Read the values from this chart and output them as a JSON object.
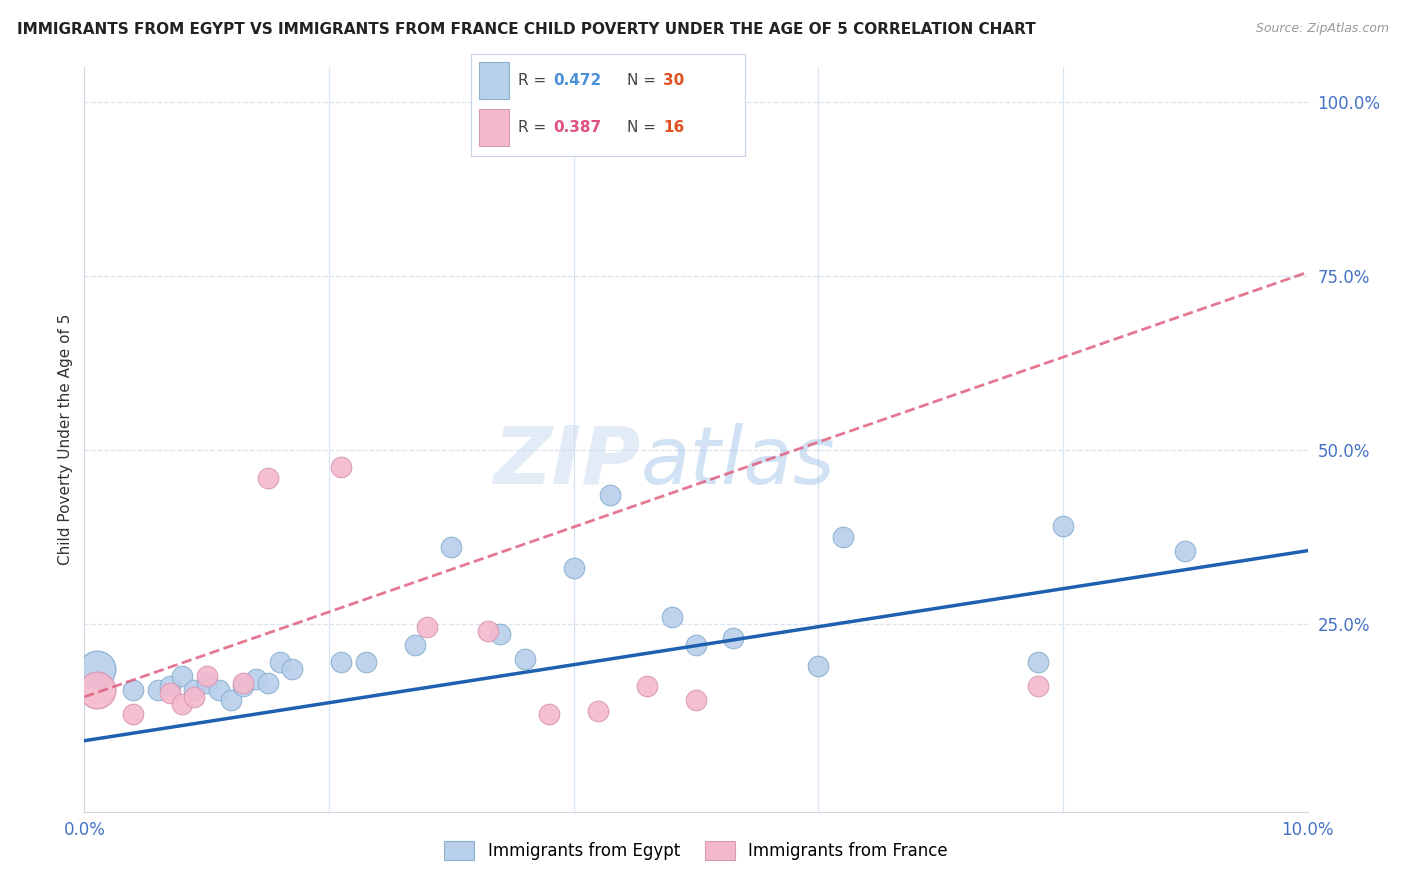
{
  "title": "IMMIGRANTS FROM EGYPT VS IMMIGRANTS FROM FRANCE CHILD POVERTY UNDER THE AGE OF 5 CORRELATION CHART",
  "source": "Source: ZipAtlas.com",
  "ylabel": "Child Poverty Under the Age of 5",
  "xlim": [
    0.0,
    0.1
  ],
  "ylim": [
    -0.02,
    1.05
  ],
  "R_egypt": 0.472,
  "N_egypt": 30,
  "R_france": 0.387,
  "N_france": 16,
  "color_egypt": "#b8d0ea",
  "color_france": "#f4b8cc",
  "color_egypt_line": "#2060b0",
  "color_france_line": "#e06080",
  "egypt_x": [
    0.001,
    0.004,
    0.006,
    0.007,
    0.008,
    0.009,
    0.01,
    0.011,
    0.012,
    0.013,
    0.014,
    0.015,
    0.016,
    0.017,
    0.021,
    0.023,
    0.027,
    0.03,
    0.034,
    0.036,
    0.04,
    0.043,
    0.048,
    0.05,
    0.053,
    0.06,
    0.062,
    0.078,
    0.08,
    0.09
  ],
  "egypt_y": [
    0.185,
    0.155,
    0.155,
    0.16,
    0.175,
    0.155,
    0.165,
    0.155,
    0.14,
    0.16,
    0.17,
    0.165,
    0.195,
    0.185,
    0.195,
    0.195,
    0.22,
    0.36,
    0.235,
    0.2,
    0.33,
    0.435,
    0.26,
    0.22,
    0.23,
    0.19,
    0.375,
    0.195,
    0.39,
    0.355
  ],
  "egypt_size_large": 1,
  "egypt_large_idx": 0,
  "france_x": [
    0.001,
    0.004,
    0.007,
    0.008,
    0.009,
    0.01,
    0.013,
    0.015,
    0.021,
    0.028,
    0.033,
    0.038,
    0.042,
    0.046,
    0.05,
    0.078
  ],
  "france_y": [
    0.155,
    0.12,
    0.15,
    0.135,
    0.145,
    0.175,
    0.165,
    0.46,
    0.475,
    0.245,
    0.24,
    0.12,
    0.125,
    0.16,
    0.14,
    0.16
  ],
  "france_large_idx": 0,
  "egypt_trend_y0": 0.082,
  "egypt_trend_y1": 0.355,
  "france_trend_y0": 0.145,
  "france_trend_y1": 0.755,
  "watermark_zip": "ZIP",
  "watermark_atlas": "atlas",
  "background_color": "#ffffff",
  "grid_color": "#d8e4f0",
  "legend_box_color": "#e8f0f8",
  "legend_R_color_egypt": "#4a90d9",
  "legend_N_color_egypt": "#e05020",
  "legend_R_color_france": "#e05080",
  "legend_N_color_france": "#e05020",
  "axis_text_color": "#4472c4"
}
